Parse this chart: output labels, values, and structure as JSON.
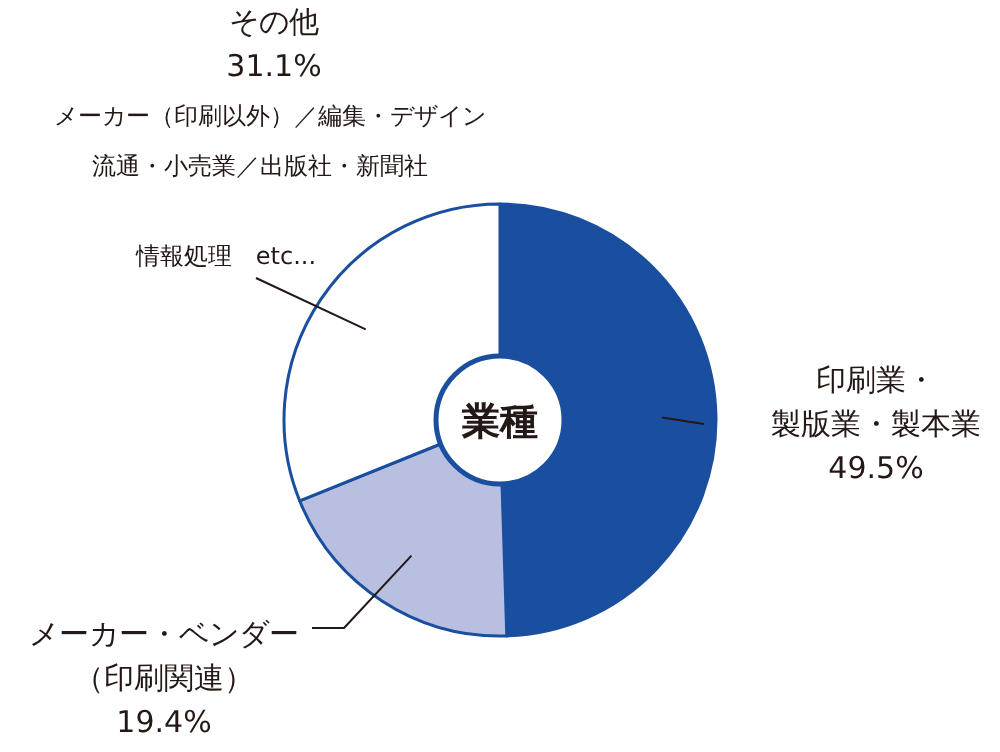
{
  "chart_data": {
    "type": "donut",
    "title": "業種",
    "categories": [
      "印刷業・製版業・製本業",
      "メーカー・ベンダー（印刷関連）",
      "その他"
    ],
    "values": [
      49.5,
      19.4,
      31.1
    ],
    "value_labels": [
      "49.5%",
      "19.4%",
      "31.1%"
    ],
    "colors": [
      "#1a4e9e",
      "#b9bfe0",
      "#ffffff"
    ],
    "annotations": [
      "メーカー（印刷以外）／編集・デザイン",
      "流通・小売業／出版社・新聞社",
      "情報処理　etc..."
    ],
    "legend": false
  }
}
